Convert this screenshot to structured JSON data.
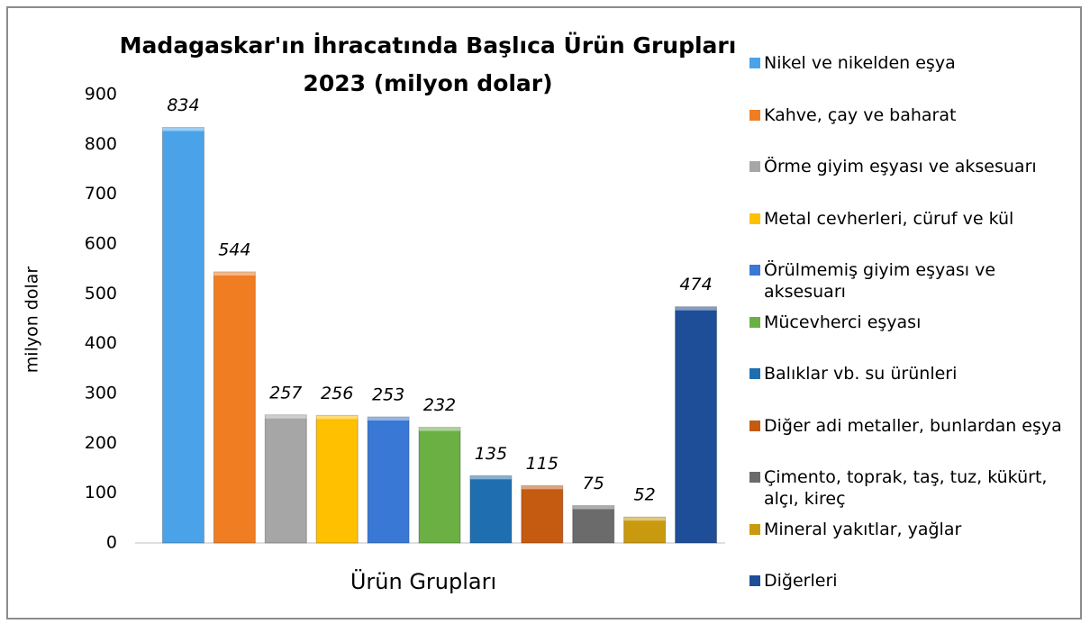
{
  "chart_data": {
    "type": "bar",
    "title": "Madagaskar'ın İhracatında Başlıca Ürün Grupları 2023 (milyon dolar)",
    "x_label": "Ürün Grupları",
    "y_label": "milyon dolar",
    "categories": [
      "Nikel ve nikelden eşya",
      "Kahve, çay ve baharat",
      "Örme giyim eşyası ve aksesuarı",
      "Metal cevherleri, cüruf ve kül",
      "Örülmemiş giyim eşyası ve aksesuarı",
      "Mücevherci eşyası",
      "Balıklar vb. su ürünleri",
      "Diğer adi metaller, bunlardan eşya",
      "Çimento, toprak, taş, tuz, kükürt, alçı, kireç",
      "Mineral yakıtlar, yağlar",
      "Diğerleri"
    ],
    "values": [
      834,
      544,
      257,
      256,
      253,
      232,
      135,
      115,
      75,
      52,
      474
    ],
    "colors": [
      "#4aa3e8",
      "#f07d22",
      "#a6a6a6",
      "#ffc000",
      "#3a78d6",
      "#6ab043",
      "#1f6fb0",
      "#c55a11",
      "#6b6b6b",
      "#c99a10",
      "#1f4e98"
    ],
    "ylim": [
      0,
      900
    ],
    "yticks": [
      0,
      100,
      200,
      300,
      400,
      500,
      600,
      700,
      800,
      900
    ],
    "legend": "right"
  }
}
